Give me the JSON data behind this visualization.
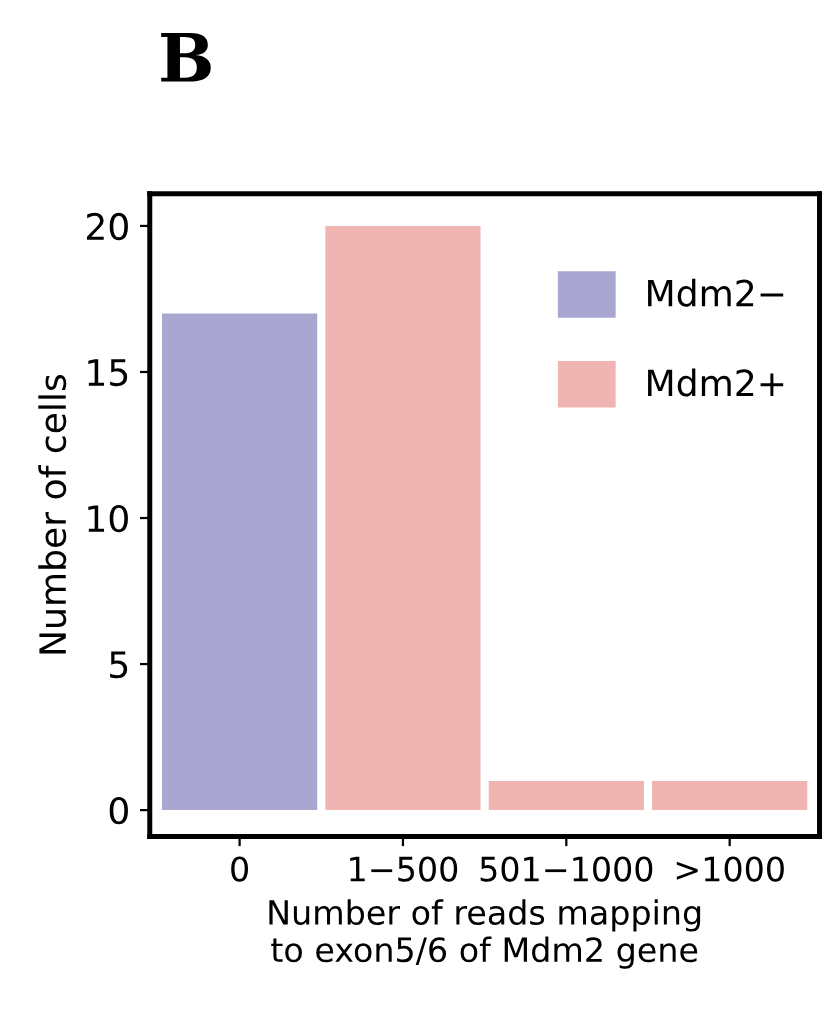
{
  "chart_data": {
    "type": "bar",
    "title": "B",
    "categories": [
      "0",
      "1−500",
      "501−1000",
      ">1000"
    ],
    "series": [
      {
        "name": "Mdm2−",
        "color": "#a9a6d2",
        "values": [
          17,
          null,
          null,
          null
        ]
      },
      {
        "name": "Mdm2+",
        "color": "#f0b4b2",
        "values": [
          null,
          20,
          1,
          1
        ]
      }
    ],
    "xlabel": "Number of reads mapping\nto exon5/6 of Mdm2 gene",
    "ylabel": "Number of cells",
    "ylim": [
      -0.9,
      21.1
    ],
    "yticks": [
      0,
      5,
      10,
      15,
      20
    ],
    "grid": false,
    "legend": "top right"
  }
}
